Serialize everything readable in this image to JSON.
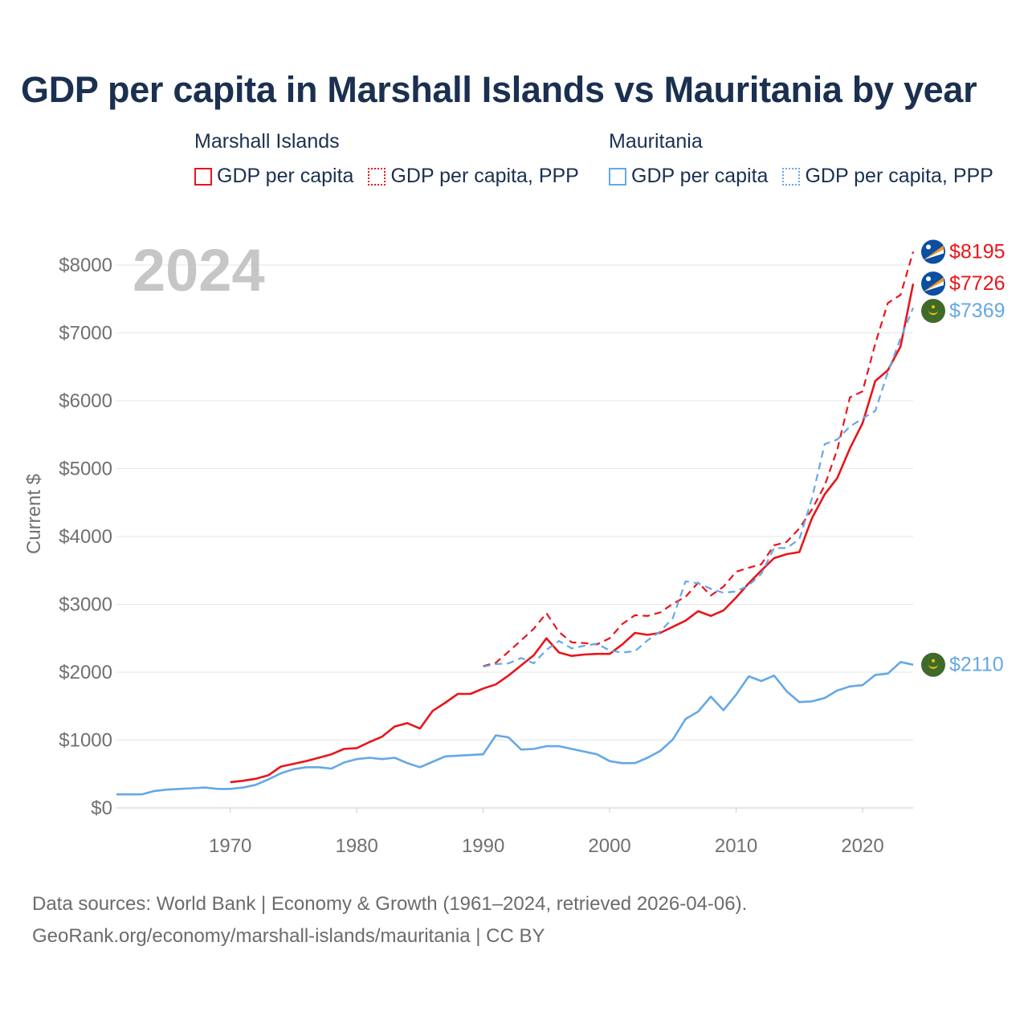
{
  "title": "GDP per capita in Marshall Islands vs Mauritania by year",
  "legend": {
    "group1": {
      "name": "Marshall Islands",
      "item1": "GDP per capita",
      "item2": "GDP per capita, PPP"
    },
    "group2": {
      "name": "Mauritania",
      "item1": "GDP per capita",
      "item2": "GDP per capita, PPP"
    }
  },
  "year_watermark": "2024",
  "footer": {
    "line1": "Data sources: World Bank | Economy & Growth (1961–2024, retrieved 2026-04-06).",
    "line2": "GeoRank.org/economy/marshall-islands/mauritania | CC BY"
  },
  "colors": {
    "red": "#e8151b",
    "blue": "#64a8e6",
    "grid": "#e6e6e6",
    "axis_text": "#707070"
  },
  "chart_data": {
    "type": "line",
    "ylabel": "Current $",
    "xlim": [
      1961,
      2024
    ],
    "ylim": [
      0,
      8000
    ],
    "y_ticks": [
      0,
      1000,
      2000,
      3000,
      4000,
      5000,
      6000,
      7000,
      8000
    ],
    "y_tick_labels": [
      "$0",
      "$1000",
      "$2000",
      "$3000",
      "$4000",
      "$5000",
      "$6000",
      "$7000",
      "$8000"
    ],
    "x_ticks": [
      1970,
      1980,
      1990,
      2000,
      2010,
      2020
    ],
    "x_tick_labels": [
      "1970",
      "1980",
      "1990",
      "2000",
      "2010",
      "2020"
    ],
    "series": [
      {
        "name": "Marshall Islands GDP per capita",
        "country": "Marshall Islands",
        "color": "#e8151b",
        "dashed": false,
        "end_label": "$7726",
        "x": [
          1970,
          1971,
          1972,
          1973,
          1974,
          1975,
          1976,
          1977,
          1978,
          1979,
          1980,
          1981,
          1982,
          1983,
          1984,
          1985,
          1986,
          1987,
          1988,
          1989,
          1990,
          1991,
          1992,
          1993,
          1994,
          1995,
          1996,
          1997,
          1998,
          1999,
          2000,
          2001,
          2002,
          2003,
          2004,
          2005,
          2006,
          2007,
          2008,
          2009,
          2010,
          2011,
          2012,
          2013,
          2014,
          2015,
          2016,
          2017,
          2018,
          2019,
          2020,
          2021,
          2022,
          2023,
          2024
        ],
        "values": [
          380,
          400,
          430,
          480,
          610,
          650,
          690,
          740,
          790,
          870,
          880,
          970,
          1050,
          1200,
          1250,
          1170,
          1430,
          1550,
          1680,
          1680,
          1760,
          1820,
          1950,
          2100,
          2250,
          2500,
          2290,
          2240,
          2260,
          2270,
          2270,
          2410,
          2580,
          2550,
          2580,
          2670,
          2760,
          2900,
          2830,
          2910,
          3100,
          3310,
          3500,
          3680,
          3740,
          3770,
          4270,
          4620,
          4860,
          5300,
          5670,
          6290,
          6450,
          6800,
          7726
        ]
      },
      {
        "name": "Marshall Islands GDP per capita, PPP",
        "country": "Marshall Islands",
        "color": "#e8151b",
        "dashed": true,
        "end_label": "$8195",
        "x": [
          1990,
          1991,
          1992,
          1993,
          1994,
          1995,
          1996,
          1997,
          1998,
          1999,
          2000,
          2001,
          2002,
          2003,
          2004,
          2005,
          2006,
          2007,
          2008,
          2009,
          2010,
          2011,
          2012,
          2013,
          2014,
          2015,
          2016,
          2017,
          2018,
          2019,
          2020,
          2021,
          2022,
          2023,
          2024
        ],
        "values": [
          2090,
          2140,
          2300,
          2470,
          2640,
          2870,
          2590,
          2440,
          2430,
          2410,
          2500,
          2710,
          2840,
          2830,
          2880,
          3010,
          3110,
          3320,
          3130,
          3260,
          3480,
          3540,
          3590,
          3870,
          3920,
          4120,
          4400,
          4750,
          5280,
          6050,
          6140,
          6840,
          7440,
          7560,
          8195
        ]
      },
      {
        "name": "Mauritania GDP per capita",
        "country": "Mauritania",
        "color": "#64a8e6",
        "dashed": false,
        "end_label": "$2110",
        "x": [
          1961,
          1962,
          1963,
          1964,
          1965,
          1966,
          1967,
          1968,
          1969,
          1970,
          1971,
          1972,
          1973,
          1974,
          1975,
          1976,
          1977,
          1978,
          1979,
          1980,
          1981,
          1982,
          1983,
          1984,
          1985,
          1986,
          1987,
          1988,
          1989,
          1990,
          1991,
          1992,
          1993,
          1994,
          1995,
          1996,
          1997,
          1998,
          1999,
          2000,
          2001,
          2002,
          2003,
          2004,
          2005,
          2006,
          2007,
          2008,
          2009,
          2010,
          2011,
          2012,
          2013,
          2014,
          2015,
          2016,
          2017,
          2018,
          2019,
          2020,
          2021,
          2022,
          2023,
          2024
        ],
        "values": [
          200,
          200,
          200,
          250,
          270,
          280,
          290,
          300,
          280,
          280,
          300,
          340,
          420,
          510,
          570,
          600,
          600,
          580,
          670,
          720,
          740,
          720,
          740,
          660,
          600,
          680,
          760,
          770,
          780,
          790,
          1070,
          1040,
          860,
          870,
          910,
          910,
          870,
          830,
          790,
          690,
          660,
          660,
          740,
          840,
          1010,
          1310,
          1420,
          1640,
          1440,
          1670,
          1940,
          1870,
          1950,
          1720,
          1560,
          1570,
          1620,
          1730,
          1790,
          1810,
          1960,
          1980,
          2150,
          2110
        ]
      },
      {
        "name": "Mauritania GDP per capita, PPP",
        "country": "Mauritania",
        "color": "#64a8e6",
        "dashed": true,
        "end_label": "$7369",
        "x": [
          1990,
          1991,
          1992,
          1993,
          1994,
          1995,
          1996,
          1997,
          1998,
          1999,
          2000,
          2001,
          2002,
          2003,
          2004,
          2005,
          2006,
          2007,
          2008,
          2009,
          2010,
          2011,
          2012,
          2013,
          2014,
          2015,
          2016,
          2017,
          2018,
          2019,
          2020,
          2021,
          2022,
          2023,
          2024
        ],
        "values": [
          2080,
          2120,
          2130,
          2210,
          2130,
          2330,
          2460,
          2350,
          2390,
          2420,
          2320,
          2290,
          2310,
          2470,
          2600,
          2800,
          3340,
          3310,
          3230,
          3170,
          3190,
          3280,
          3450,
          3830,
          3830,
          3960,
          4560,
          5360,
          5430,
          5620,
          5740,
          5850,
          6420,
          6920,
          7369
        ]
      }
    ]
  }
}
